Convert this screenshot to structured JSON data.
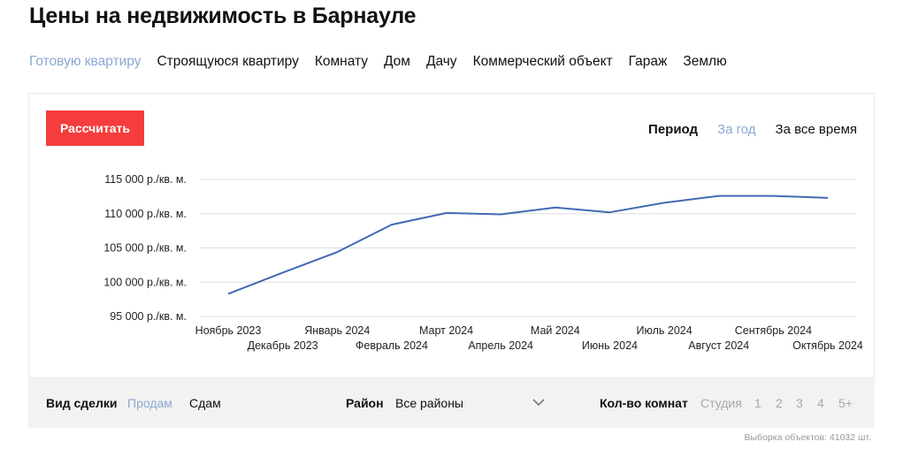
{
  "title": "Цены на недвижимость в Барнауле",
  "property_types": [
    {
      "label": "Готовую квартиру",
      "active": true
    },
    {
      "label": "Строящуюся квартиру",
      "active": false
    },
    {
      "label": "Комнату",
      "active": false
    },
    {
      "label": "Дом",
      "active": false
    },
    {
      "label": "Дачу",
      "active": false
    },
    {
      "label": "Коммерческий объект",
      "active": false
    },
    {
      "label": "Гараж",
      "active": false
    },
    {
      "label": "Землю",
      "active": false
    }
  ],
  "calculate_label": "Рассчитать",
  "period": {
    "label": "Период",
    "options": [
      {
        "label": "За год",
        "active": true
      },
      {
        "label": "За все время",
        "active": false
      }
    ]
  },
  "chart_data": {
    "type": "line",
    "categories": [
      "Ноябрь 2023",
      "Декабрь 2023",
      "Январь 2024",
      "Февраль 2024",
      "Март 2024",
      "Апрель 2024",
      "Май 2024",
      "Июнь 2024",
      "Июль 2024",
      "Август 2024",
      "Сентябрь 2024",
      "Октябрь 2024"
    ],
    "values": [
      98300,
      101400,
      104400,
      108400,
      110100,
      109900,
      110900,
      110200,
      111600,
      112600,
      112600,
      112300
    ],
    "y_ticks": [
      95000,
      100000,
      105000,
      110000,
      115000
    ],
    "y_tick_labels": [
      "95 000 р./кв. м.",
      "100 000 р./кв. м.",
      "105 000 р./кв. м.",
      "110 000 р./кв. м.",
      "115 000 р./кв. м."
    ],
    "ylim": [
      95000,
      115000
    ],
    "grid": true,
    "line_color": "#4169b5",
    "grid_color": "#dddddd"
  },
  "filters": {
    "deal_label": "Вид сделки",
    "deal_options": [
      {
        "label": "Продам",
        "active": true
      },
      {
        "label": "Сдам",
        "active": false
      }
    ],
    "district_label": "Район",
    "district_value": "Все районы",
    "rooms_label": "Кол-во комнат",
    "room_options": [
      "Студия",
      "1",
      "2",
      "3",
      "4",
      "5+"
    ]
  },
  "sample_note": "Выборка объектов: 41032 шт."
}
